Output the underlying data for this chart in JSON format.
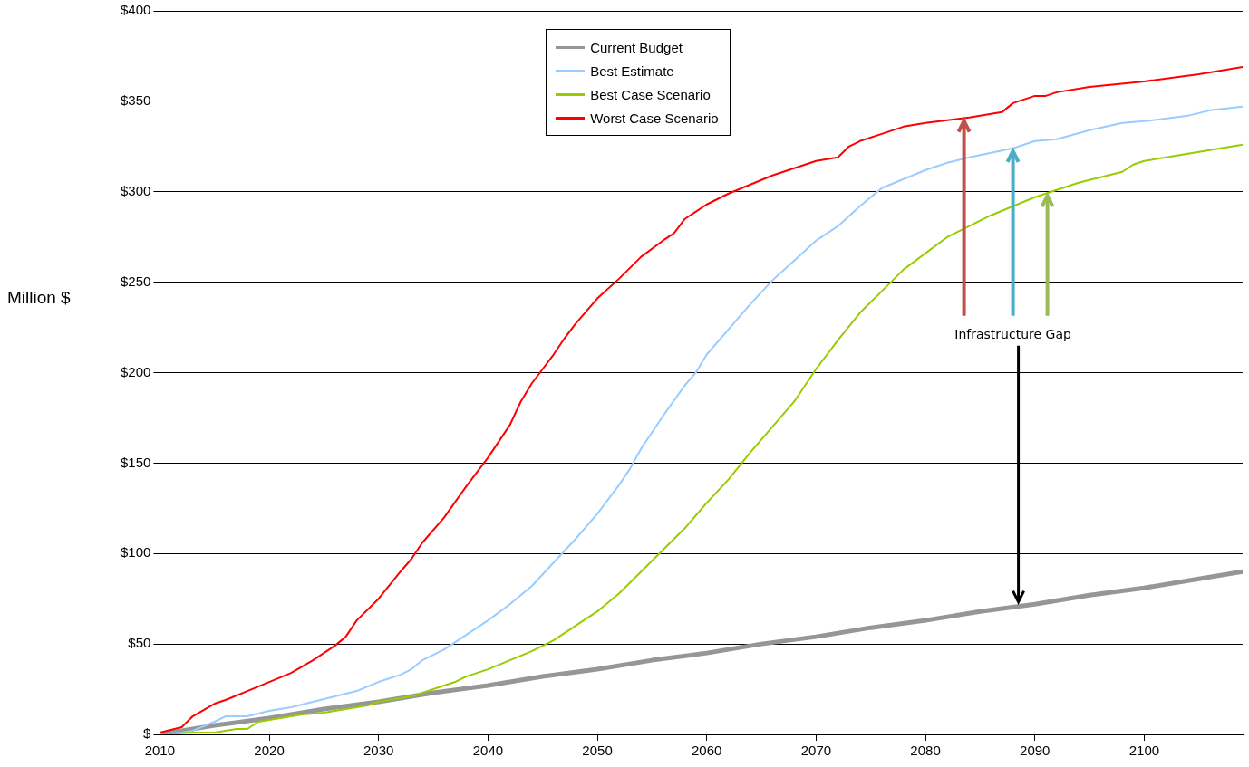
{
  "chart_data": {
    "type": "line",
    "ylabel": "Million $",
    "xlim": [
      2010,
      2109
    ],
    "xticks": [
      2010,
      2020,
      2030,
      2040,
      2050,
      2060,
      2070,
      2080,
      2090,
      2100
    ],
    "ylim": [
      0,
      400
    ],
    "yticks": [
      {
        "value": 0,
        "label": "$"
      },
      {
        "value": 50,
        "label": "$50"
      },
      {
        "value": 100,
        "label": "$100"
      },
      {
        "value": 150,
        "label": "$150"
      },
      {
        "value": 200,
        "label": "$200"
      },
      {
        "value": 250,
        "label": "$250"
      },
      {
        "value": 300,
        "label": "$300"
      },
      {
        "value": 350,
        "label": "$350"
      },
      {
        "value": 400,
        "label": "$400"
      }
    ],
    "grid": "y",
    "legend": "top",
    "marker": "none",
    "line_style": "solid",
    "annotations": [
      {
        "text": "Infrastructure Gap",
        "x": 2088,
        "y": 324
      }
    ],
    "series": [
      {
        "name": "Current  Budget",
        "color": "#969696",
        "x": [
          2010,
          2015,
          2020,
          2025,
          2030,
          2035,
          2040,
          2045,
          2050,
          2055,
          2060,
          2065,
          2070,
          2075,
          2080,
          2085,
          2090,
          2095,
          2100,
          2105,
          2109
        ],
        "values": [
          0,
          5,
          9,
          14,
          18,
          23,
          27,
          32,
          36,
          41,
          45,
          50,
          54,
          59,
          63,
          68,
          72,
          77,
          81,
          86,
          90
        ]
      },
      {
        "name": "Best Estimate",
        "color": "#99ccff",
        "x": [
          2010,
          2012,
          2013,
          2015,
          2016,
          2018,
          2020,
          2022,
          2024,
          2026,
          2028,
          2030,
          2032,
          2033,
          2034,
          2036,
          2038,
          2040,
          2042,
          2044,
          2046,
          2048,
          2050,
          2052,
          2053,
          2054,
          2056,
          2058,
          2059,
          2060,
          2062,
          2064,
          2066,
          2068,
          2070,
          2072,
          2074,
          2076,
          2078,
          2080,
          2082,
          2084,
          2088,
          2090,
          2092,
          2095,
          2098,
          2100,
          2104,
          2106,
          2109
        ],
        "values": [
          0,
          1,
          2,
          7,
          10,
          10,
          13,
          15,
          18,
          21,
          24,
          29,
          33,
          36,
          41,
          47,
          55,
          63,
          72,
          82,
          95,
          108,
          122,
          138,
          147,
          158,
          176,
          193,
          200,
          210,
          224,
          238,
          251,
          262,
          273,
          281,
          292,
          302,
          307,
          312,
          316,
          319,
          324,
          328,
          329,
          334,
          338,
          339,
          342,
          345,
          347
        ]
      },
      {
        "name": "Best Case Scenario",
        "color": "#99cc00",
        "x": [
          2010,
          2013,
          2015,
          2017,
          2018,
          2019,
          2021,
          2023,
          2025,
          2027,
          2029,
          2030,
          2033,
          2035,
          2037,
          2038,
          2040,
          2042,
          2044,
          2046,
          2048,
          2050,
          2052,
          2054,
          2056,
          2058,
          2060,
          2062,
          2064,
          2066,
          2068,
          2070,
          2072,
          2074,
          2076,
          2078,
          2080,
          2082,
          2084,
          2086,
          2088,
          2090,
          2092,
          2094,
          2096,
          2098,
          2099,
          2100,
          2104,
          2106,
          2109
        ],
        "values": [
          0,
          1,
          1,
          3,
          3,
          7,
          9,
          11,
          12,
          14,
          16,
          18,
          21,
          25,
          29,
          32,
          36,
          41,
          46,
          52,
          60,
          68,
          78,
          90,
          102,
          114,
          128,
          141,
          156,
          170,
          184,
          202,
          218,
          233,
          245,
          257,
          266,
          275,
          281,
          287,
          292,
          297,
          301,
          305,
          308,
          311,
          315,
          317,
          321,
          323,
          326
        ]
      },
      {
        "name": "Worst Case Scenario",
        "color": "#ff0000",
        "x": [
          2010,
          2012,
          2013,
          2015,
          2016,
          2018,
          2020,
          2022,
          2024,
          2026,
          2027,
          2028,
          2030,
          2032,
          2033,
          2034,
          2036,
          2038,
          2040,
          2042,
          2043,
          2044,
          2045,
          2046,
          2047,
          2048,
          2050,
          2052,
          2054,
          2056,
          2057,
          2058,
          2060,
          2062,
          2064,
          2066,
          2068,
          2070,
          2072,
          2073,
          2074,
          2076,
          2078,
          2080,
          2084,
          2087,
          2088,
          2090,
          2091,
          2092,
          2095,
          2100,
          2105,
          2109
        ],
        "values": [
          1,
          4,
          10,
          17,
          19,
          24,
          29,
          34,
          41,
          49,
          54,
          63,
          75,
          90,
          97,
          106,
          120,
          137,
          153,
          171,
          184,
          194,
          202,
          210,
          219,
          227,
          241,
          252,
          264,
          273,
          277,
          285,
          293,
          299,
          304,
          309,
          313,
          317,
          319,
          325,
          328,
          332,
          336,
          338,
          341,
          344,
          349,
          353,
          353,
          355,
          358,
          361,
          365,
          369
        ]
      }
    ]
  }
}
